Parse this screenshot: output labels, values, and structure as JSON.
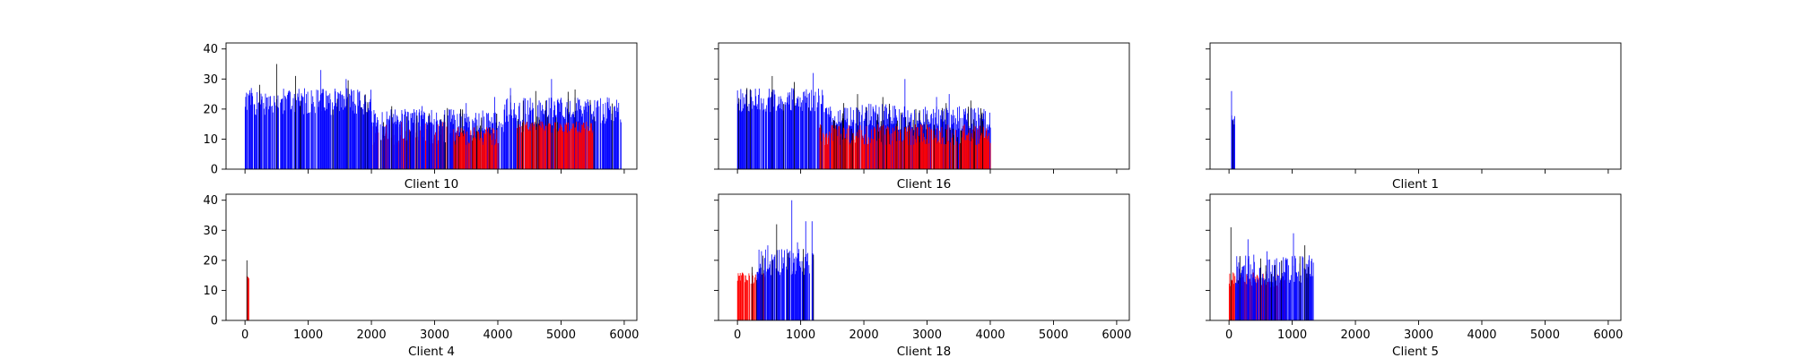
{
  "chart_data": {
    "type": "bar",
    "layout": "2x3 small multiples, shared x and y axes",
    "xlim": [
      -300,
      6200
    ],
    "ylim": [
      0,
      42
    ],
    "x_ticks": [
      0,
      1000,
      2000,
      3000,
      4000,
      5000,
      6000
    ],
    "y_ticks": [
      0,
      10,
      20,
      30,
      40
    ],
    "colors": {
      "blue": "#0000ff",
      "red": "#ff0000",
      "black": "#000000"
    },
    "panels": [
      {
        "xlabel": "Client 10",
        "spans": [
          {
            "color": "blue",
            "start": 0,
            "end": 2000,
            "min": 18,
            "max": 27,
            "peaks": [
              [
                500,
                35
              ],
              [
                1200,
                33
              ],
              [
                800,
                31
              ],
              [
                1600,
                30
              ],
              [
                100,
                27
              ]
            ]
          },
          {
            "color": "red",
            "start": 2000,
            "end": 3300,
            "min": 8,
            "max": 16,
            "peaks": []
          },
          {
            "color": "blue",
            "start": 2000,
            "end": 3300,
            "min": 14,
            "max": 20,
            "peaks": [
              [
                2800,
                21
              ]
            ]
          },
          {
            "color": "blue",
            "start": 3300,
            "end": 4100,
            "min": 11,
            "max": 20,
            "peaks": [
              [
                3500,
                22
              ],
              [
                3950,
                24
              ]
            ]
          },
          {
            "color": "red",
            "start": 3300,
            "end": 4000,
            "min": 8,
            "max": 14,
            "peaks": []
          },
          {
            "color": "blue",
            "start": 4100,
            "end": 5950,
            "min": 15,
            "max": 24,
            "peaks": [
              [
                4200,
                27
              ],
              [
                4850,
                30
              ],
              [
                4600,
                26
              ],
              [
                5400,
                22
              ]
            ]
          },
          {
            "color": "red",
            "start": 4300,
            "end": 5500,
            "min": 12,
            "max": 16,
            "peaks": []
          }
        ]
      },
      {
        "xlabel": "Client 16",
        "spans": [
          {
            "color": "blue",
            "start": 0,
            "end": 1400,
            "min": 19,
            "max": 27,
            "peaks": [
              [
                550,
                31
              ],
              [
                1200,
                32
              ],
              [
                900,
                29
              ],
              [
                150,
                27
              ]
            ]
          },
          {
            "color": "blue",
            "start": 1400,
            "end": 2500,
            "min": 14,
            "max": 22,
            "peaks": [
              [
                1900,
                25
              ],
              [
                2300,
                24
              ]
            ]
          },
          {
            "color": "blue",
            "start": 2500,
            "end": 4000,
            "min": 13,
            "max": 21,
            "peaks": [
              [
                2650,
                30
              ],
              [
                3350,
                25
              ],
              [
                3150,
                24
              ],
              [
                3900,
                20
              ]
            ]
          },
          {
            "color": "red",
            "start": 1300,
            "end": 4000,
            "min": 8,
            "max": 15,
            "peaks": []
          }
        ]
      },
      {
        "xlabel": "Client 1",
        "spans": [
          {
            "color": "blue",
            "start": 40,
            "end": 90,
            "min": 14,
            "max": 18,
            "peaks": [
              [
                40,
                26
              ]
            ]
          }
        ]
      },
      {
        "xlabel": "Client 4",
        "spans": [
          {
            "color": "red",
            "start": 10,
            "end": 60,
            "min": 13,
            "max": 15,
            "peaks": [
              [
                30,
                20
              ]
            ]
          }
        ]
      },
      {
        "xlabel": "Client 18",
        "spans": [
          {
            "color": "red",
            "start": 0,
            "end": 450,
            "min": 12,
            "max": 16,
            "peaks": []
          },
          {
            "color": "blue",
            "start": 300,
            "end": 1200,
            "min": 15,
            "max": 24,
            "peaks": [
              [
                860,
                40
              ],
              [
                620,
                32
              ],
              [
                1080,
                33
              ],
              [
                1180,
                33
              ],
              [
                950,
                26
              ],
              [
                480,
                25
              ]
            ]
          }
        ]
      },
      {
        "xlabel": "Client 5",
        "spans": [
          {
            "color": "red",
            "start": 0,
            "end": 900,
            "min": 11,
            "max": 16,
            "peaks": []
          },
          {
            "color": "blue",
            "start": 100,
            "end": 1330,
            "min": 12,
            "max": 22,
            "peaks": [
              [
                30,
                31
              ],
              [
                1020,
                29
              ],
              [
                300,
                27
              ],
              [
                1200,
                25
              ],
              [
                600,
                23
              ]
            ]
          }
        ]
      }
    ]
  }
}
